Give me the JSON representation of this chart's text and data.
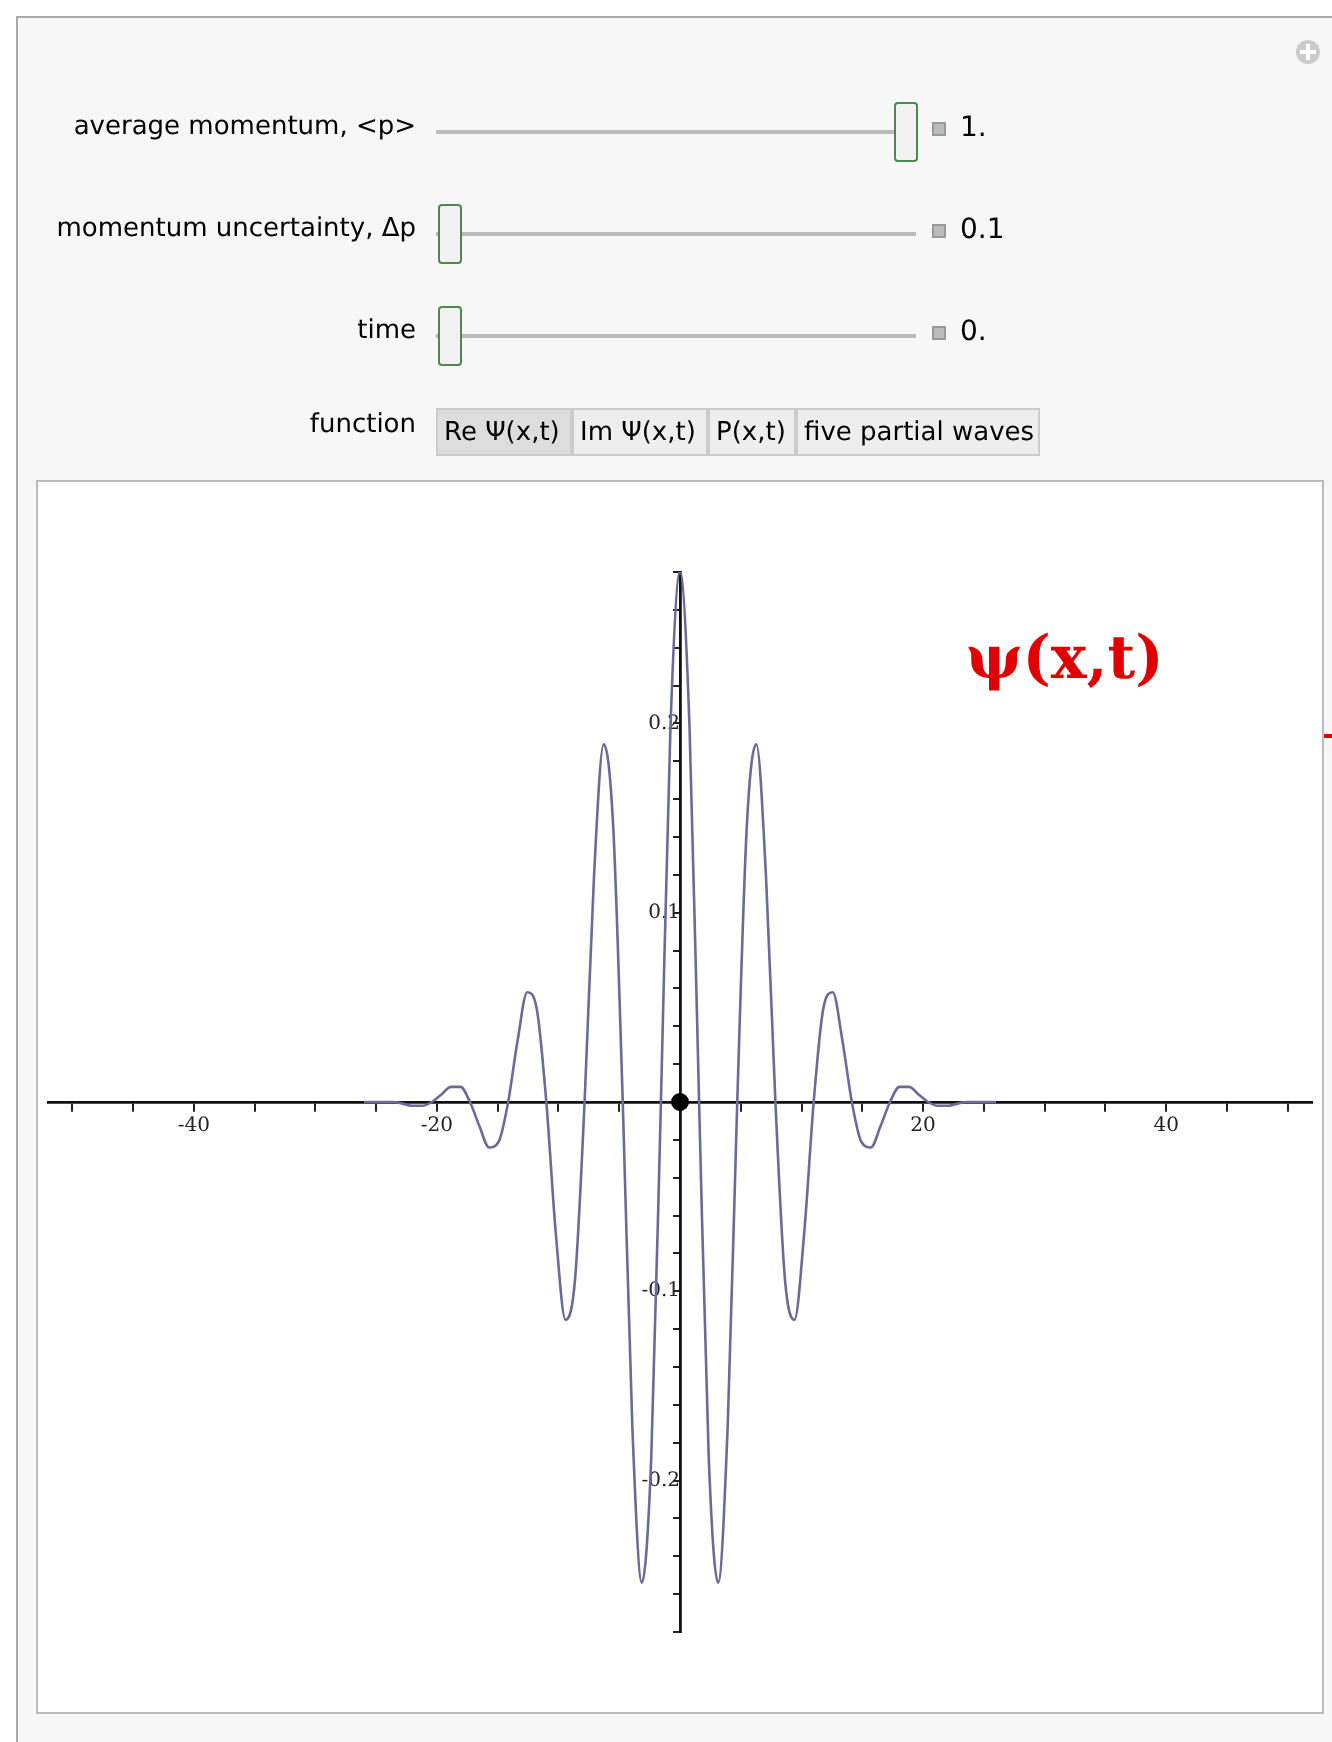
{
  "chart_data": {
    "type": "line",
    "xlim": [
      -52,
      52
    ],
    "ylim": [
      -0.28,
      0.28
    ],
    "xticks": [
      {
        "value": -50,
        "label": null
      },
      {
        "value": -45,
        "label": null
      },
      -40,
      {
        "value": -35,
        "label": null
      },
      {
        "value": -30,
        "label": null
      },
      {
        "value": -25,
        "label": null
      },
      -20,
      {
        "value": -15,
        "label": null
      },
      {
        "value": -10,
        "label": null
      },
      {
        "value": -5,
        "label": null
      },
      {
        "value": 5,
        "label": null
      },
      {
        "value": 10,
        "label": null
      },
      {
        "value": 15,
        "label": null
      },
      20,
      {
        "value": 25,
        "label": null
      },
      {
        "value": 30,
        "label": null
      },
      {
        "value": 35,
        "label": null
      },
      40,
      {
        "value": 45,
        "label": null
      },
      {
        "value": 50,
        "label": null
      }
    ],
    "yticks": [
      {
        "value": -0.28,
        "label": null
      },
      {
        "value": -0.26,
        "label": null
      },
      {
        "value": -0.24,
        "label": null
      },
      {
        "value": -0.22,
        "label": null
      },
      -0.2,
      {
        "value": -0.18,
        "label": null
      },
      {
        "value": -0.16,
        "label": null
      },
      {
        "value": -0.14,
        "label": null
      },
      {
        "value": -0.12,
        "label": null
      },
      -0.1,
      {
        "value": -0.08,
        "label": null
      },
      {
        "value": -0.06,
        "label": null
      },
      {
        "value": -0.04,
        "label": null
      },
      {
        "value": -0.02,
        "label": null
      },
      {
        "value": 0.02,
        "label": null
      },
      {
        "value": 0.04,
        "label": null
      },
      {
        "value": 0.06,
        "label": null
      },
      {
        "value": 0.08,
        "label": null
      },
      0.1,
      {
        "value": 0.12,
        "label": null
      },
      {
        "value": 0.14,
        "label": null
      },
      {
        "value": 0.16,
        "label": null
      },
      {
        "value": 0.18,
        "label": null
      },
      0.2,
      {
        "value": 0.22,
        "label": null
      },
      {
        "value": 0.24,
        "label": null
      },
      {
        "value": 0.26,
        "label": null
      },
      {
        "value": 0.28,
        "label": null
      }
    ],
    "legend": false,
    "marker": "none",
    "series": [
      {
        "color": "#6b6b98",
        "x": [
          -26,
          -23.56,
          -22.78,
          -21.99,
          -21.21,
          -20.42,
          -19.63,
          -18.85,
          -18.06,
          -17.28,
          -16.49,
          -15.71,
          -14.92,
          -14.14,
          -13.35,
          -12.57,
          -11.78,
          -11,
          -10.21,
          -9.42,
          -8.64,
          -7.85,
          -7.07,
          -6.28,
          -5.5,
          -4.71,
          -3.93,
          -3.14,
          -2.36,
          -1.57,
          -0.79,
          0,
          0.79,
          1.57,
          2.36,
          3.14,
          3.93,
          4.71,
          5.5,
          6.28,
          7.07,
          7.85,
          8.64,
          9.42,
          10.21,
          11,
          11.78,
          12.57,
          13.35,
          14.14,
          14.92,
          15.71,
          16.49,
          17.28,
          18.06,
          18.85,
          19.63,
          20.42,
          21.21,
          21.99,
          22.78,
          23.56,
          26
        ],
        "values": [
          0,
          0,
          -0.001,
          -0.002,
          -0.002,
          0,
          0.004,
          0.008,
          0.008,
          0,
          -0.013,
          -0.024,
          -0.021,
          0,
          0.033,
          0.058,
          0.049,
          0,
          -0.07,
          -0.115,
          -0.094,
          0,
          0.12,
          0.189,
          0.146,
          0,
          -0.17,
          -0.254,
          -0.187,
          0,
          0.197,
          0.28,
          0.197,
          0,
          -0.187,
          -0.254,
          -0.17,
          0,
          0.146,
          0.189,
          0.12,
          0,
          -0.094,
          -0.115,
          -0.07,
          0,
          0.049,
          0.058,
          0.033,
          0,
          -0.021,
          -0.024,
          -0.013,
          0,
          0.008,
          0.008,
          0.004,
          0,
          -0.002,
          -0.002,
          -0.001,
          0,
          0
        ]
      },
      {
        "type": "scatter",
        "marker": "circle",
        "color": "#000000",
        "x": [
          0
        ],
        "values": [
          0
        ]
      }
    ],
    "annotations": [
      "ψ(x,t)",
      "average momentum, <p>",
      "1.",
      "momentum uncertainty, Δp",
      "0.1",
      "time",
      "0.",
      "function",
      "Re Ψ(x,t)",
      "Im Ψ(x,t)",
      "P(x,t)",
      "five partial waves"
    ]
  }
}
